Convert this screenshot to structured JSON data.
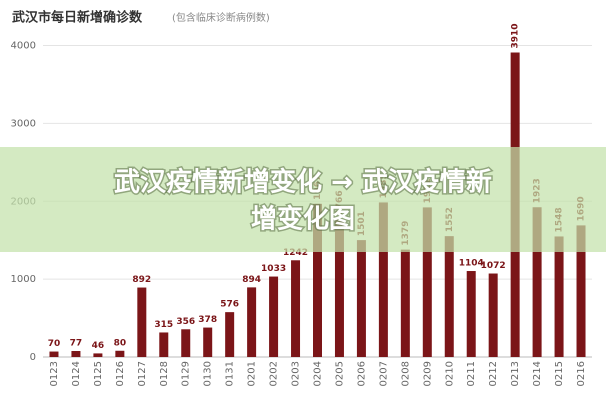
{
  "chart_data": {
    "type": "bar",
    "title": "武汉市每日新增确诊数",
    "subtitle": "(包含临床诊断病例数)",
    "categories": [
      "0123",
      "0124",
      "0125",
      "0126",
      "0127",
      "0128",
      "0129",
      "0130",
      "0131",
      "0201",
      "0202",
      "0203",
      "0204",
      "0205",
      "0206",
      "0207",
      "0208",
      "0209",
      "0210",
      "0211",
      "0212",
      "0213",
      "0214",
      "0215",
      "0216"
    ],
    "values": [
      70,
      77,
      46,
      80,
      892,
      315,
      356,
      378,
      576,
      894,
      1033,
      1242,
      1967,
      1766,
      1501,
      1985,
      1379,
      1921,
      1552,
      1104,
      1072,
      3910,
      1923,
      1548,
      1690
    ],
    "color": "#7b1518",
    "ylim": [
      0,
      4000
    ],
    "yticks": [
      0,
      1000,
      2000,
      3000,
      4000
    ],
    "grid": true
  },
  "overlay": {
    "lines": [
      "武汉疫情新增变化 → 武汉疫情新",
      "增变化图"
    ]
  }
}
